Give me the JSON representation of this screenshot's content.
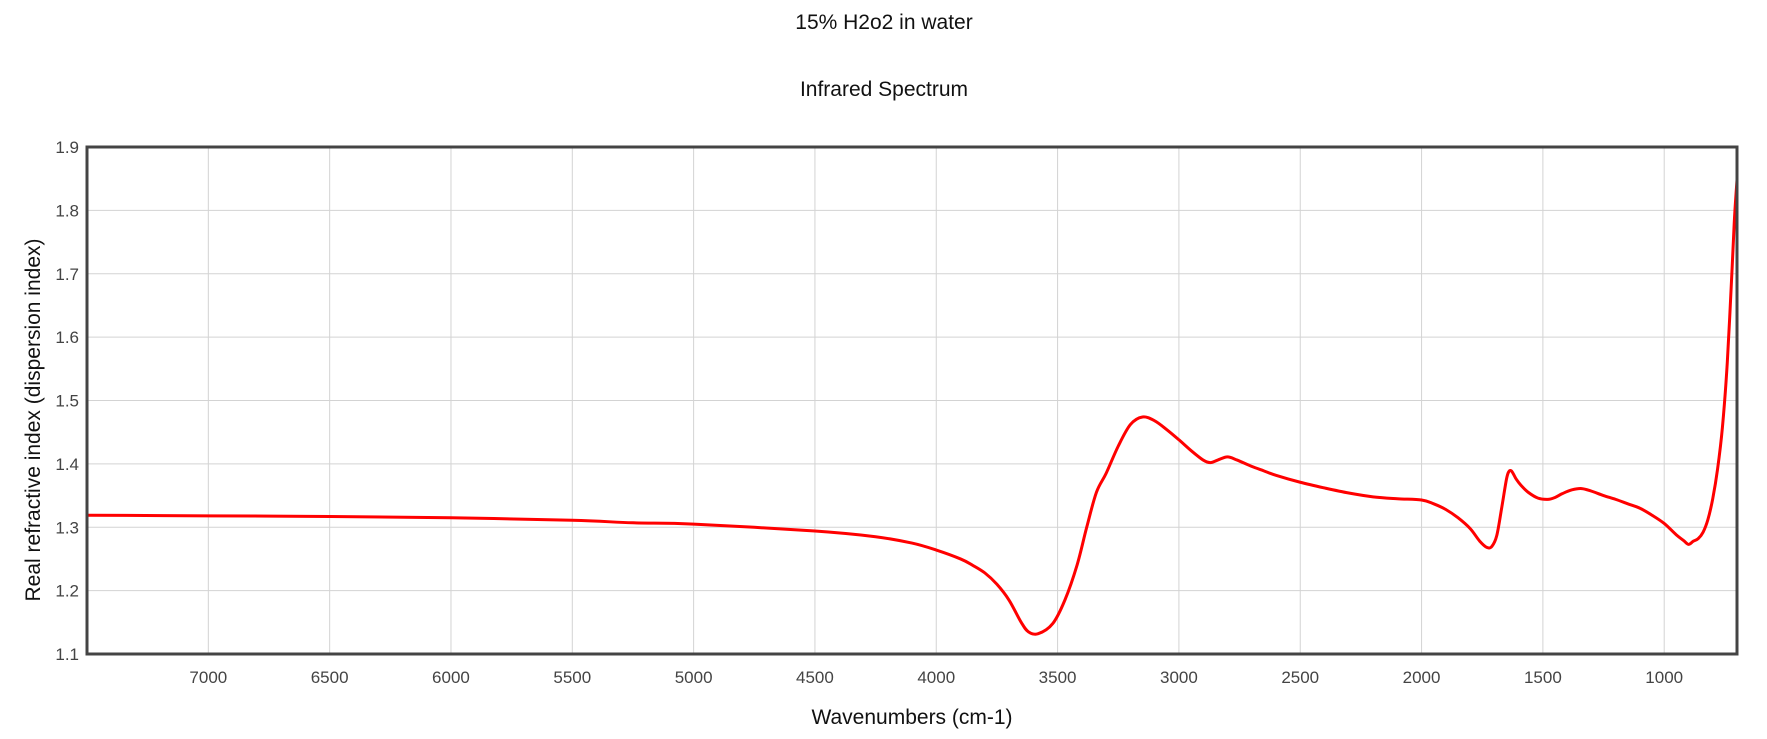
{
  "chart_data": {
    "type": "line",
    "title": "15% H2o2 in water",
    "subtitle": "Infrared Spectrum",
    "xlabel": "Wavenumbers (cm-1)",
    "ylabel": "Real refractive index (dispersion index)",
    "xlim": [
      7500,
      700
    ],
    "ylim": [
      1.1,
      1.9
    ],
    "x_reversed": true,
    "grid": true,
    "x_ticks": [
      7000,
      6500,
      6000,
      5500,
      5000,
      4500,
      4000,
      3500,
      3000,
      2500,
      2000,
      1500,
      1000
    ],
    "x_tick_labels": [
      "7000",
      "6500",
      "6000",
      "5500",
      "5000",
      "4500",
      "4000",
      "3500",
      "3000",
      "2500",
      "2000",
      "1500",
      "1000"
    ],
    "y_ticks": [
      1.1,
      1.2,
      1.3,
      1.4,
      1.5,
      1.6,
      1.7,
      1.8,
      1.9
    ],
    "y_tick_labels": [
      "1.1",
      "1.2",
      "1.3",
      "1.4",
      "1.5",
      "1.6",
      "1.7",
      "1.8",
      "1.9"
    ],
    "colors": {
      "series": "#ff0000",
      "grid": "#d3d3d3",
      "frame": "#444444",
      "text": "#111111",
      "tick_text": "#444444"
    },
    "series": [
      {
        "x": [
          7500,
          7000,
          6500,
          6000,
          5500,
          5250,
          5000,
          4500,
          4250,
          4100,
          4000,
          3900,
          3850,
          3800,
          3750,
          3700,
          3650,
          3620,
          3580,
          3520,
          3470,
          3420,
          3380,
          3340,
          3300,
          3250,
          3200,
          3150,
          3100,
          3050,
          3000,
          2950,
          2900,
          2870,
          2840,
          2800,
          2760,
          2700,
          2650,
          2600,
          2500,
          2400,
          2300,
          2200,
          2100,
          2000,
          1950,
          1900,
          1850,
          1800,
          1760,
          1730,
          1710,
          1690,
          1670,
          1650,
          1640,
          1630,
          1620,
          1610,
          1590,
          1560,
          1520,
          1480,
          1450,
          1420,
          1380,
          1340,
          1300,
          1250,
          1200,
          1150,
          1100,
          1050,
          1000,
          950,
          920,
          900,
          880,
          860,
          840,
          820,
          800,
          780,
          760,
          740,
          720,
          710,
          700
        ],
        "values": [
          1.319,
          1.318,
          1.317,
          1.315,
          1.311,
          1.307,
          1.305,
          1.294,
          1.285,
          1.275,
          1.264,
          1.25,
          1.24,
          1.228,
          1.21,
          1.185,
          1.15,
          1.135,
          1.132,
          1.148,
          1.185,
          1.24,
          1.3,
          1.355,
          1.385,
          1.428,
          1.462,
          1.474,
          1.468,
          1.454,
          1.438,
          1.421,
          1.406,
          1.402,
          1.406,
          1.411,
          1.406,
          1.396,
          1.389,
          1.382,
          1.371,
          1.362,
          1.354,
          1.348,
          1.345,
          1.343,
          1.337,
          1.328,
          1.315,
          1.298,
          1.278,
          1.268,
          1.27,
          1.287,
          1.33,
          1.376,
          1.388,
          1.389,
          1.383,
          1.376,
          1.366,
          1.355,
          1.346,
          1.344,
          1.347,
          1.353,
          1.359,
          1.361,
          1.357,
          1.35,
          1.344,
          1.337,
          1.33,
          1.319,
          1.306,
          1.288,
          1.279,
          1.273,
          1.278,
          1.282,
          1.292,
          1.312,
          1.345,
          1.392,
          1.458,
          1.56,
          1.71,
          1.79,
          1.848
        ]
      }
    ]
  }
}
